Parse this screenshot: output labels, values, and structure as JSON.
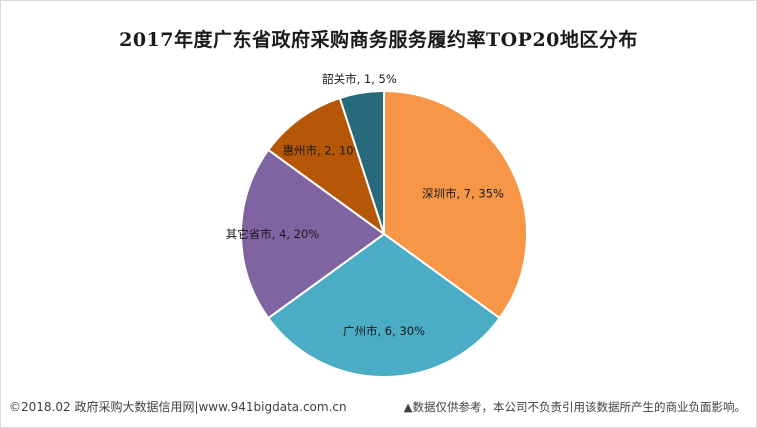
{
  "chart_data": {
    "type": "pie",
    "title": "2017年度广东省政府采购商务服务履约率TOP20地区分布",
    "slices": [
      {
        "label": "深圳市, 7, 35%",
        "name": "深圳市",
        "value": 7,
        "percent": 35,
        "color": "#F79646"
      },
      {
        "label": "广州市, 6, 30%",
        "name": "广州市",
        "value": 6,
        "percent": 30,
        "color": "#4BACC6"
      },
      {
        "label": "其它省市, 4, 20%",
        "name": "其它省市",
        "value": 4,
        "percent": 20,
        "color": "#8064A2"
      },
      {
        "label": "惠州市, 2, 10%",
        "name": "惠州市",
        "value": 2,
        "percent": 10,
        "color": "#B65708"
      },
      {
        "label": "韶关市, 1, 5%",
        "name": "韶关市",
        "value": 1,
        "percent": 5,
        "color": "#276A7C"
      }
    ],
    "legend": false
  },
  "footer": {
    "left": "©2018.02 政府采购大数据信用网|www.941bigdata.com.cn",
    "right": "▲数据仅供参考，本公司不负责引用该数据所产生的商业负面影响。"
  }
}
